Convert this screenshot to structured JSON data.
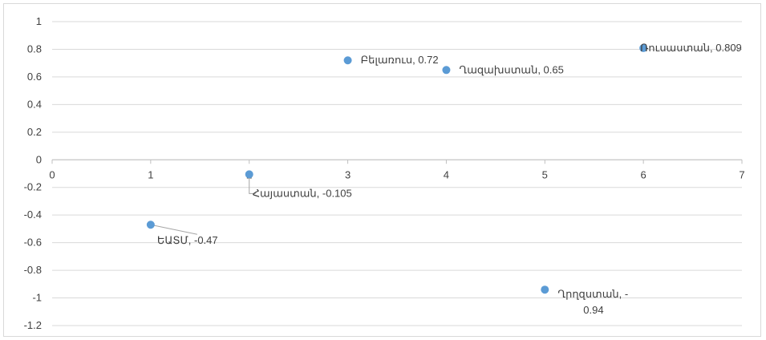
{
  "chart_data": {
    "type": "scatter",
    "title": "",
    "xlabel": "",
    "ylabel": "",
    "xlim": [
      0,
      7
    ],
    "ylim": [
      -1.2,
      1
    ],
    "x_ticks": [
      "0",
      "1",
      "2",
      "3",
      "4",
      "5",
      "6",
      "7"
    ],
    "y_ticks": [
      "1",
      "0.8",
      "0.6",
      "0.4",
      "0.2",
      "0",
      "-0.2",
      "-0.4",
      "-0.6",
      "-0.8",
      "-1",
      "-1.2"
    ],
    "grid": "horizontal",
    "marker_color": "#5b9bd5",
    "points": [
      {
        "x": 1,
        "y": -0.47,
        "label": "ԵԱՏՄ, -0.47"
      },
      {
        "x": 2,
        "y": -0.105,
        "label": "Հայաստան, -0.105"
      },
      {
        "x": 3,
        "y": 0.72,
        "label": "Բելառուս, 0.72"
      },
      {
        "x": 4,
        "y": 0.65,
        "label": "Ղազախստան, 0.65"
      },
      {
        "x": 5,
        "y": -0.94,
        "label": "Ղրղզստան, -",
        "label_line2": "0.94"
      },
      {
        "x": 6,
        "y": 0.809,
        "label": "Ռուսաստան, 0.809"
      }
    ]
  }
}
